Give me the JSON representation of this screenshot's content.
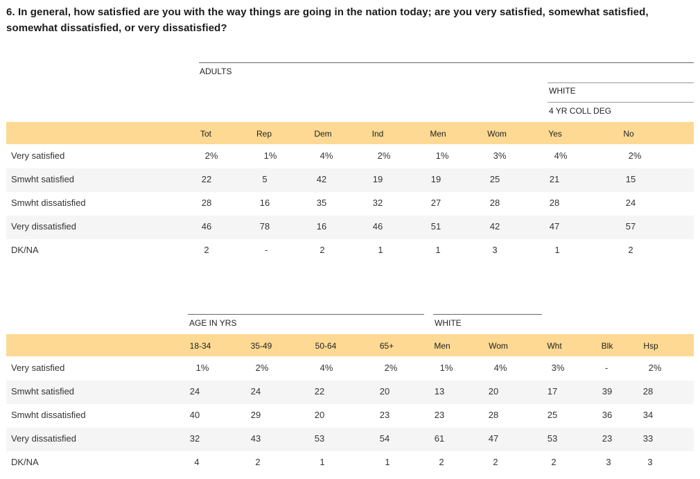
{
  "question": "6. In general, how satisfied are you with the way things are going in the nation today; are you very satisfied, somewhat satisfied, somewhat dissatisfied, or very dissatisfied?",
  "table1": {
    "group_adults": "ADULTS",
    "group_white": "WHITE",
    "group_coll": "4 YR COLL DEG",
    "columns": [
      "Tot",
      "Rep",
      "Dem",
      "Ind",
      "Men",
      "Wom",
      "Yes",
      "No"
    ],
    "rows": [
      {
        "label": "Very satisfied",
        "values": [
          "2%",
          "1%",
          "4%",
          "2%",
          "1%",
          "3%",
          "4%",
          "2%"
        ]
      },
      {
        "label": "Smwht satisfied",
        "values": [
          "22",
          "5",
          "42",
          "19",
          "19",
          "25",
          "21",
          "15"
        ]
      },
      {
        "label": "Smwht dissatisfied",
        "values": [
          "28",
          "16",
          "35",
          "32",
          "27",
          "28",
          "28",
          "24"
        ]
      },
      {
        "label": "Very dissatisfied",
        "values": [
          "46",
          "78",
          "16",
          "46",
          "51",
          "42",
          "47",
          "57"
        ]
      },
      {
        "label": "DK/NA",
        "values": [
          "2",
          "-",
          "2",
          "1",
          "1",
          "3",
          "1",
          "2"
        ]
      }
    ]
  },
  "table2": {
    "group_age": "AGE IN YRS",
    "group_white": "WHITE",
    "columns": [
      "18-34",
      "35-49",
      "50-64",
      "65+",
      "Men",
      "Wom",
      "Wht",
      "Blk",
      "Hsp"
    ],
    "rows": [
      {
        "label": "Very satisfied",
        "values": [
          "1%",
          "2%",
          "4%",
          "2%",
          "1%",
          "4%",
          "3%",
          "-",
          "2%"
        ]
      },
      {
        "label": "Smwht satisfied",
        "values": [
          "24",
          "24",
          "22",
          "20",
          "13",
          "20",
          "17",
          "39",
          "28"
        ]
      },
      {
        "label": "Smwht dissatisfied",
        "values": [
          "40",
          "29",
          "20",
          "23",
          "23",
          "28",
          "25",
          "36",
          "34"
        ]
      },
      {
        "label": "Very dissatisfied",
        "values": [
          "32",
          "43",
          "53",
          "54",
          "61",
          "47",
          "53",
          "23",
          "33"
        ]
      },
      {
        "label": "DK/NA",
        "values": [
          "4",
          "2",
          "1",
          "1",
          "2",
          "2",
          "2",
          "3",
          "3"
        ]
      }
    ]
  }
}
